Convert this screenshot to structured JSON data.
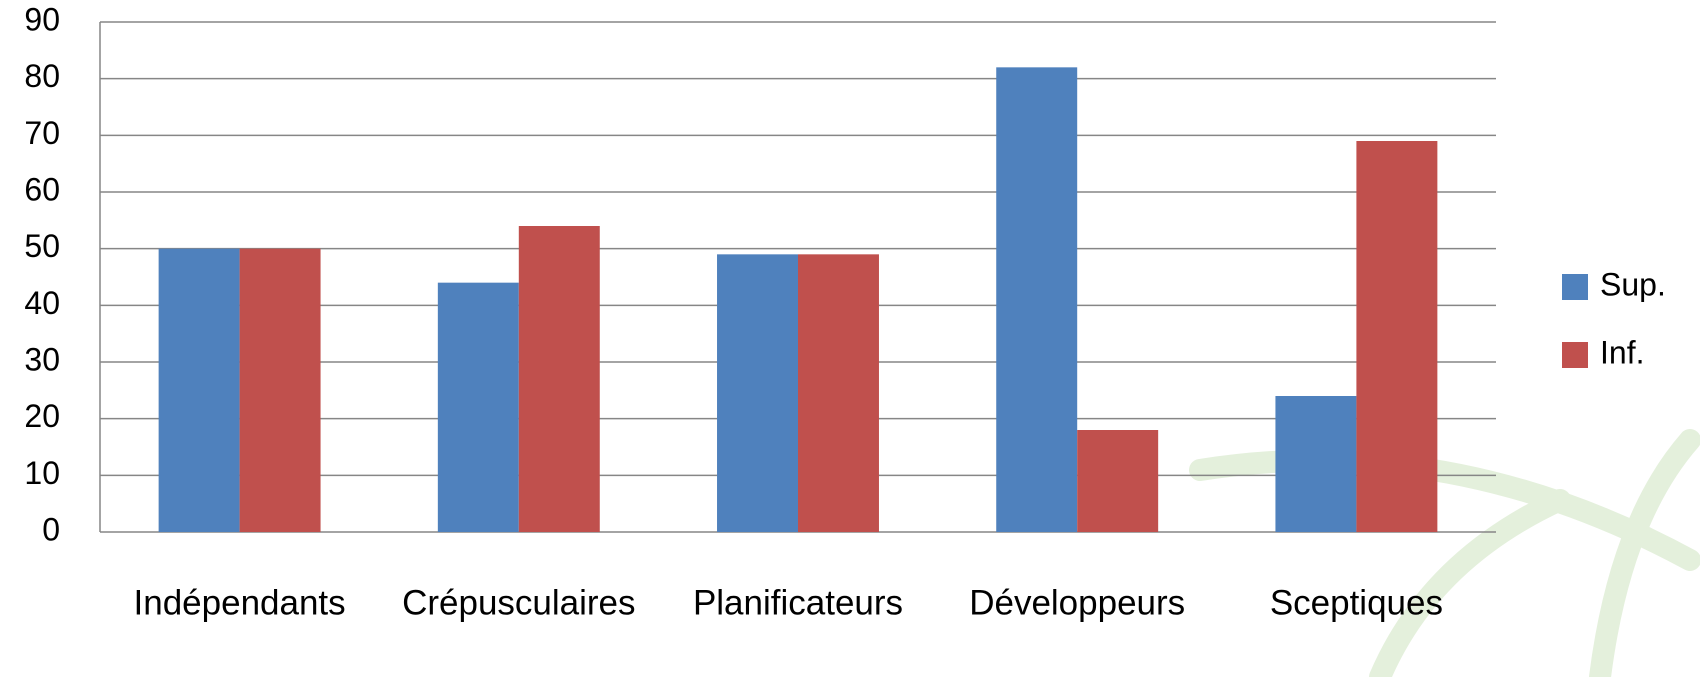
{
  "chart_data": {
    "type": "bar",
    "categories": [
      "Indépendants",
      "Crépusculaires",
      "Planificateurs",
      "Développeurs",
      "Sceptiques"
    ],
    "series": [
      {
        "name": "Sup.",
        "color": "#4f81bd",
        "values": [
          50,
          44,
          49,
          82,
          24
        ]
      },
      {
        "name": "Inf.",
        "color": "#c0504d",
        "values": [
          50,
          54,
          49,
          18,
          69
        ]
      }
    ],
    "ylim": [
      0,
      90
    ],
    "yticks": [
      0,
      10,
      20,
      30,
      40,
      50,
      60,
      70,
      80,
      90
    ],
    "grid": true,
    "legend": "right"
  }
}
